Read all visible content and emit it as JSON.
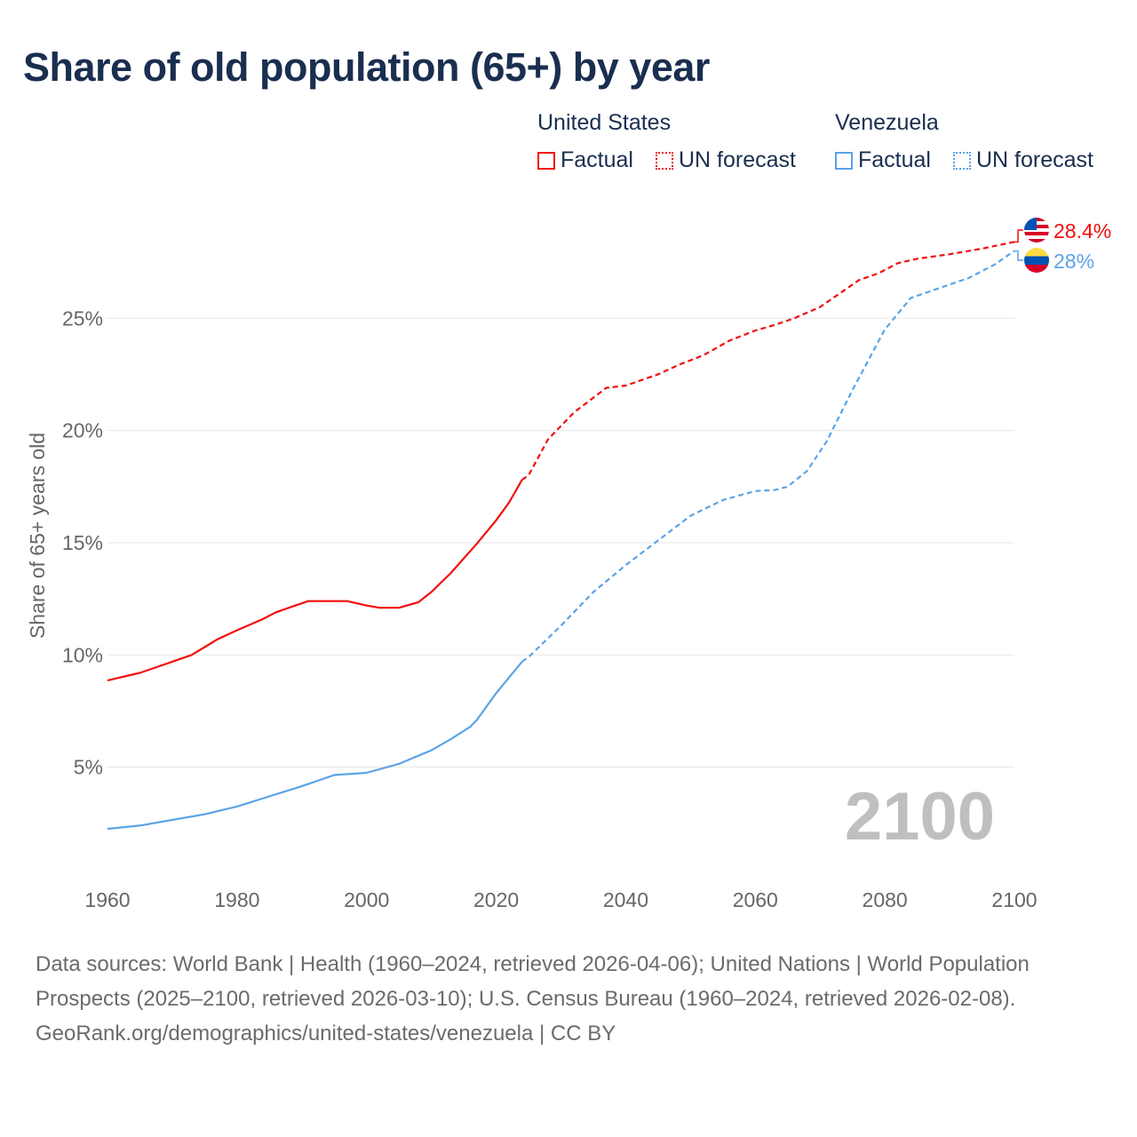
{
  "title": "Share of old population (65+) by year",
  "legend": {
    "groups": [
      {
        "name": "United States",
        "factual": "Factual",
        "forecast": "UN forecast",
        "color": "#f20d0d"
      },
      {
        "name": "Venezuela",
        "factual": "Factual",
        "forecast": "UN forecast",
        "color": "#5ca3e6"
      }
    ]
  },
  "chart_data": {
    "type": "line",
    "title": "Share of old population (65+) by year",
    "xlabel": "",
    "ylabel": "Share of 65+ years old",
    "xlim": [
      1960,
      2100
    ],
    "ylim": [
      0,
      29
    ],
    "x_ticks": [
      1960,
      1980,
      2000,
      2020,
      2040,
      2060,
      2080,
      2100
    ],
    "x_tick_labels": [
      "1960",
      "1980",
      "2000",
      "2020",
      "2040",
      "2060",
      "2080",
      "2100"
    ],
    "y_ticks": [
      5,
      10,
      15,
      20,
      25
    ],
    "y_tick_labels": [
      "5%",
      "10%",
      "15%",
      "20%",
      "25%"
    ],
    "grid": true,
    "year_watermark": "2100",
    "series": [
      {
        "name": "United States",
        "color": "#f20d0d",
        "end_label": "28.4%",
        "factual": {
          "x": [
            1960,
            1962,
            1965,
            1967,
            1970,
            1973,
            1975,
            1977,
            1980,
            1982,
            1984,
            1986,
            1988,
            1991,
            1997,
            2000,
            2002,
            2005,
            2008,
            2010,
            2013,
            2017,
            2020,
            2022,
            2024
          ],
          "y": [
            8.86,
            9.0,
            9.2,
            9.4,
            9.7,
            10.0,
            10.35,
            10.7,
            11.1,
            11.35,
            11.6,
            11.9,
            12.1,
            12.4,
            12.4,
            12.2,
            12.1,
            12.1,
            12.35,
            12.8,
            13.65,
            14.95,
            16.0,
            16.8,
            17.8
          ]
        },
        "forecast": {
          "x": [
            2024,
            2025,
            2028,
            2032,
            2037,
            2040,
            2045,
            2048,
            2052,
            2056,
            2060,
            2063,
            2066,
            2070,
            2073,
            2076,
            2079,
            2082,
            2085,
            2090,
            2095,
            2100
          ],
          "y": [
            17.8,
            18.0,
            19.6,
            20.8,
            21.9,
            22.0,
            22.5,
            22.9,
            23.35,
            24.0,
            24.45,
            24.7,
            25.0,
            25.5,
            26.1,
            26.7,
            27.0,
            27.45,
            27.65,
            27.85,
            28.1,
            28.4
          ]
        }
      },
      {
        "name": "Venezuela",
        "color": "#5ca3e6",
        "end_label": "28%",
        "factual": {
          "x": [
            1960,
            1965,
            1970,
            1975,
            1980,
            1985,
            1990,
            1995,
            2000,
            2005,
            2010,
            2013,
            2016,
            2017,
            2020,
            2024
          ],
          "y": [
            2.25,
            2.4,
            2.65,
            2.9,
            3.25,
            3.7,
            4.15,
            4.65,
            4.75,
            5.15,
            5.75,
            6.25,
            6.8,
            7.1,
            8.3,
            9.7
          ]
        },
        "forecast": {
          "x": [
            2024,
            2025,
            2030,
            2035,
            2040,
            2045,
            2050,
            2055,
            2060,
            2063,
            2065,
            2068,
            2071,
            2075,
            2080,
            2084,
            2090,
            2093,
            2097,
            2100
          ],
          "y": [
            9.7,
            9.9,
            11.3,
            12.8,
            14.0,
            15.1,
            16.2,
            16.9,
            17.3,
            17.35,
            17.5,
            18.2,
            19.5,
            21.8,
            24.5,
            25.9,
            26.5,
            26.8,
            27.4,
            28.0
          ]
        }
      }
    ]
  },
  "footer": {
    "sources": "Data sources: World Bank | Health (1960–2024, retrieved 2026-04-06); United Nations | World Population Prospects (2025–2100, retrieved 2026-03-10); U.S. Census Bureau (1960–2024, retrieved 2026-02-08).",
    "credit": "GeoRank.org/demographics/united-states/venezuela | CC BY"
  }
}
